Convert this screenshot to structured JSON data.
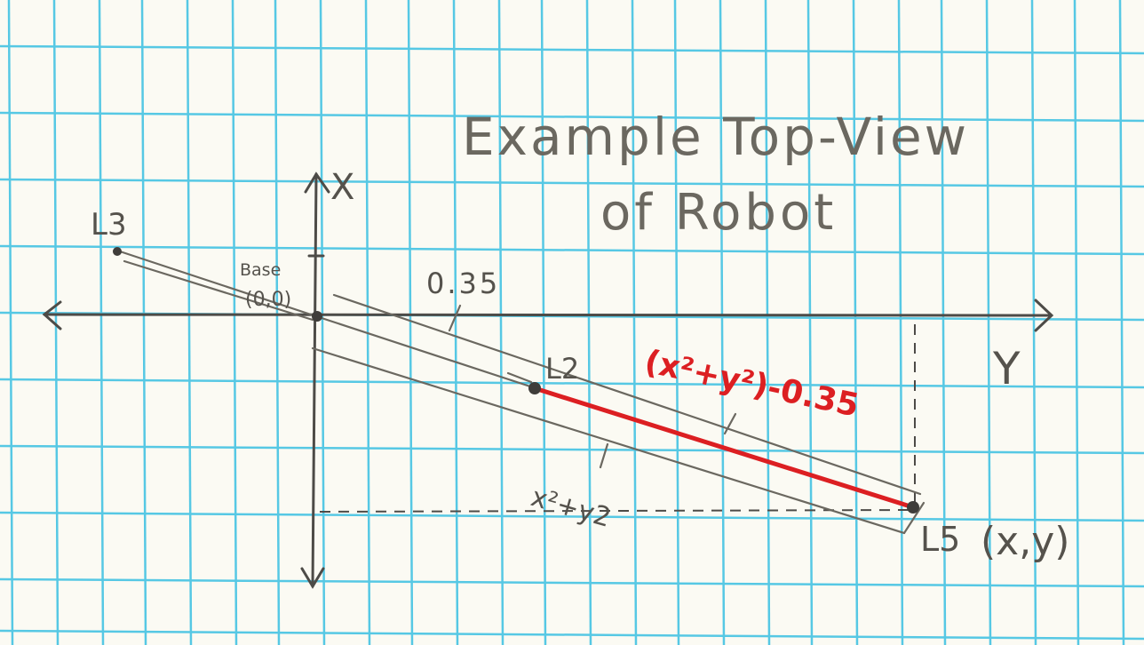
{
  "title": {
    "line1": "Example Top-View",
    "line2": "of Robot"
  },
  "axes": {
    "x_label": "X",
    "y_label": "Y"
  },
  "points": {
    "base": {
      "name": "Base",
      "coords": "(0,0)"
    },
    "l3": {
      "name": "L3"
    },
    "l2": {
      "name": "L2"
    },
    "l5": {
      "name": "L5",
      "coords": "(x,y)"
    }
  },
  "annotations": {
    "offset": "0.35",
    "hypotenuse": "x²+y2",
    "red_segment": "(x²+y²)-0.35"
  },
  "colors": {
    "grid": "#56c8e4",
    "pencil": "#4d4b47",
    "red_line": "#dc1f22",
    "paper": "#fbfaf3"
  }
}
